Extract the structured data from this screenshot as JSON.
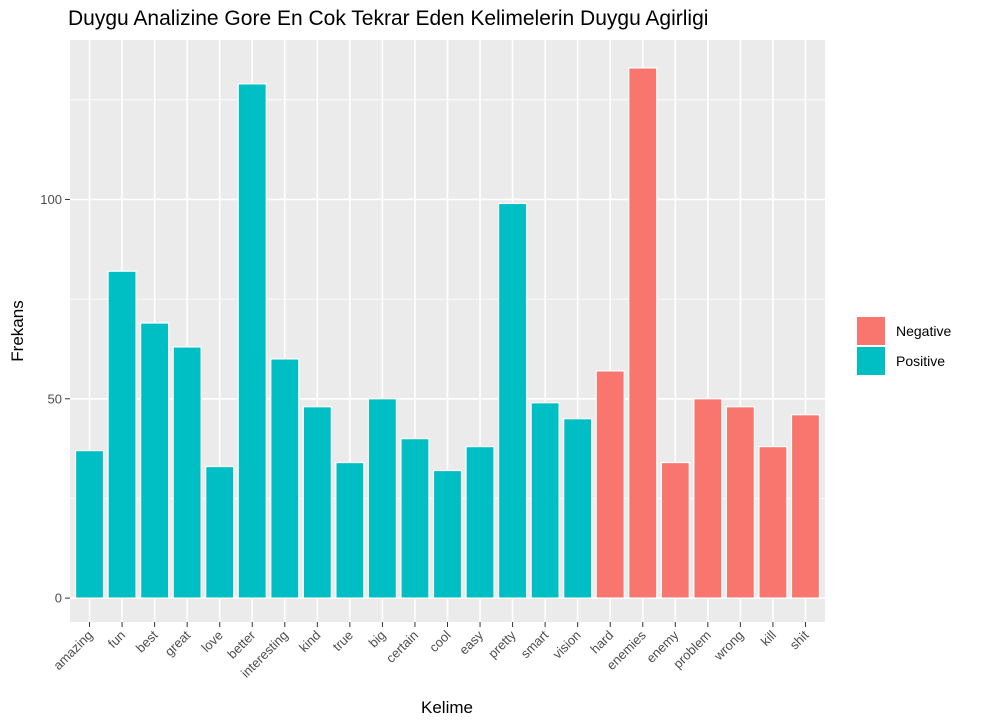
{
  "chart_data": {
    "type": "bar",
    "title": "Duygu Analizine Gore En Cok Tekrar Eden Kelimelerin Duygu Agirligi",
    "xlabel": "Kelime",
    "ylabel": "Frekans",
    "ylim": [
      -6,
      140
    ],
    "yticks": [
      0,
      50,
      100
    ],
    "grid": true,
    "legend_position": "right",
    "legend": [
      {
        "name": "Negative",
        "color": "#F8766D"
      },
      {
        "name": "Positive",
        "color": "#00BFC4"
      }
    ],
    "bars": [
      {
        "label": "amazing",
        "value": 37,
        "sentiment": "Positive"
      },
      {
        "label": "fun",
        "value": 82,
        "sentiment": "Positive"
      },
      {
        "label": "best",
        "value": 69,
        "sentiment": "Positive"
      },
      {
        "label": "great",
        "value": 63,
        "sentiment": "Positive"
      },
      {
        "label": "love",
        "value": 33,
        "sentiment": "Positive"
      },
      {
        "label": "better",
        "value": 129,
        "sentiment": "Positive"
      },
      {
        "label": "interesting",
        "value": 60,
        "sentiment": "Positive"
      },
      {
        "label": "kind",
        "value": 48,
        "sentiment": "Positive"
      },
      {
        "label": "true",
        "value": 34,
        "sentiment": "Positive"
      },
      {
        "label": "big",
        "value": 50,
        "sentiment": "Positive"
      },
      {
        "label": "certain",
        "value": 40,
        "sentiment": "Positive"
      },
      {
        "label": "cool",
        "value": 32,
        "sentiment": "Positive"
      },
      {
        "label": "easy",
        "value": 38,
        "sentiment": "Positive"
      },
      {
        "label": "pretty",
        "value": 99,
        "sentiment": "Positive"
      },
      {
        "label": "smart",
        "value": 49,
        "sentiment": "Positive"
      },
      {
        "label": "vision",
        "value": 45,
        "sentiment": "Positive"
      },
      {
        "label": "hard",
        "value": 57,
        "sentiment": "Negative"
      },
      {
        "label": "enemies",
        "value": 133,
        "sentiment": "Negative"
      },
      {
        "label": "enemy",
        "value": 34,
        "sentiment": "Negative"
      },
      {
        "label": "problem",
        "value": 50,
        "sentiment": "Negative"
      },
      {
        "label": "wrong",
        "value": 48,
        "sentiment": "Negative"
      },
      {
        "label": "kill",
        "value": 38,
        "sentiment": "Negative"
      },
      {
        "label": "shit",
        "value": 46,
        "sentiment": "Negative"
      }
    ]
  }
}
